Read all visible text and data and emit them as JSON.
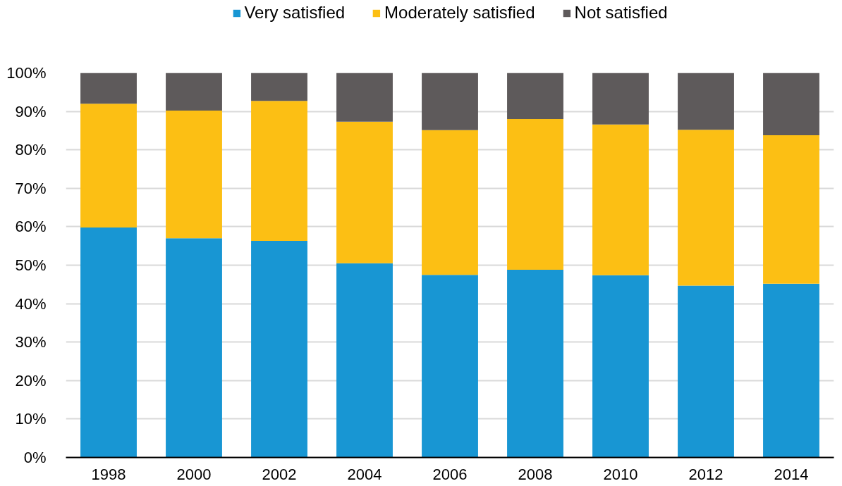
{
  "chart_data": {
    "type": "bar",
    "stacked": true,
    "categories": [
      "1998",
      "2000",
      "2002",
      "2004",
      "2006",
      "2008",
      "2010",
      "2012",
      "2014"
    ],
    "series": [
      {
        "name": "Very satisfied",
        "color": "#1896d3",
        "values": [
          59.8,
          57.0,
          56.3,
          50.5,
          47.5,
          48.8,
          47.4,
          44.7,
          45.2
        ]
      },
      {
        "name": "Moderately satisfied",
        "color": "#fcbf14",
        "values": [
          32.2,
          33.2,
          36.4,
          36.8,
          37.6,
          39.2,
          39.2,
          40.5,
          38.6
        ]
      },
      {
        "name": "Not satisfied",
        "color": "#5e5a5b",
        "values": [
          8.0,
          9.8,
          7.3,
          12.7,
          14.9,
          12.0,
          13.4,
          14.8,
          16.2
        ]
      }
    ],
    "ylim": [
      0,
      100
    ],
    "yticks": [
      {
        "value": 0,
        "label": "0%"
      },
      {
        "value": 10,
        "label": "10%"
      },
      {
        "value": 20,
        "label": "20%"
      },
      {
        "value": 30,
        "label": "30%"
      },
      {
        "value": 40,
        "label": "40%"
      },
      {
        "value": 50,
        "label": "50%"
      },
      {
        "value": 60,
        "label": "60%"
      },
      {
        "value": 70,
        "label": "70%"
      },
      {
        "value": 80,
        "label": "80%"
      },
      {
        "value": 90,
        "label": "90%"
      },
      {
        "value": 100,
        "label": "100%"
      }
    ],
    "grid": "y",
    "legend": "top"
  }
}
